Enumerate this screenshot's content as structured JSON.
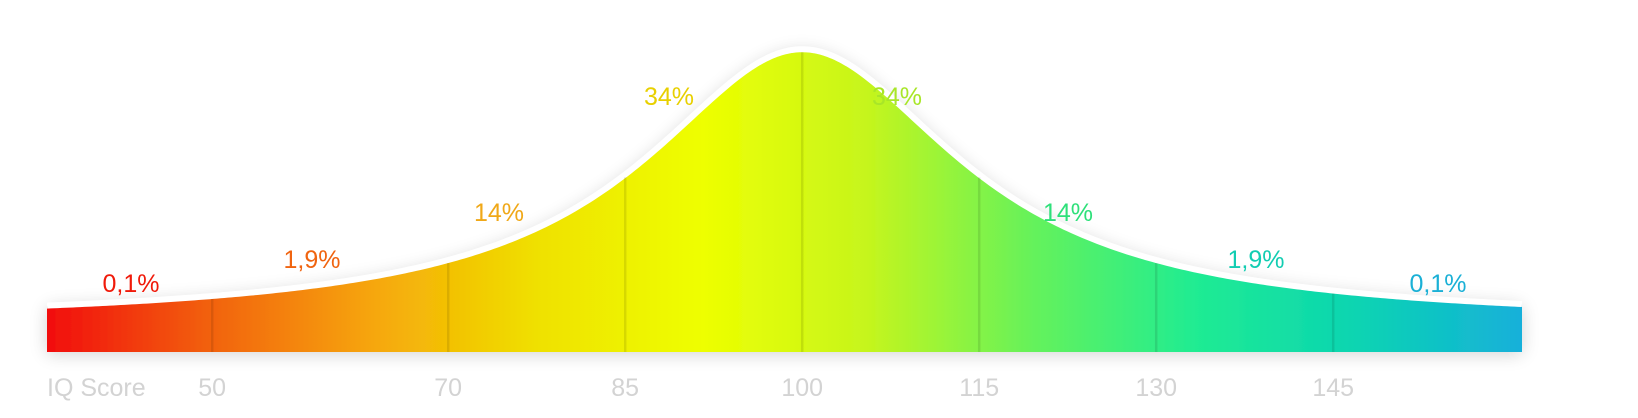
{
  "chart_data": {
    "type": "area",
    "xlabel": "IQ Score",
    "x_ticks": [
      "50",
      "70",
      "85",
      "100",
      "115",
      "130",
      "145"
    ],
    "tick_values": [
      50,
      70,
      85,
      100,
      115,
      130,
      145
    ],
    "xlim": [
      36,
      161
    ],
    "bands": [
      {
        "label": "0,1%",
        "value": 0.1,
        "color": "#f01a0a"
      },
      {
        "label": "1,9%",
        "value": 1.9,
        "color": "#f06410"
      },
      {
        "label": "14%",
        "value": 14,
        "color": "#f0a818"
      },
      {
        "label": "34%",
        "value": 34,
        "color": "#e8d000"
      },
      {
        "label": "34%",
        "value": 34,
        "color": "#a8e628"
      },
      {
        "label": "14%",
        "value": 14,
        "color": "#2ee07a"
      },
      {
        "label": "1,9%",
        "value": 1.9,
        "color": "#12cdb2"
      },
      {
        "label": "0,1%",
        "value": 0.1,
        "color": "#1ab0d6"
      }
    ],
    "gradient_colors": [
      "#f20d08",
      "#f26210",
      "#f6a70a",
      "#efe100",
      "#eeff00",
      "#c6f51c",
      "#66f25a",
      "#20ec92",
      "#0ad4b2",
      "#16b0da"
    ]
  }
}
